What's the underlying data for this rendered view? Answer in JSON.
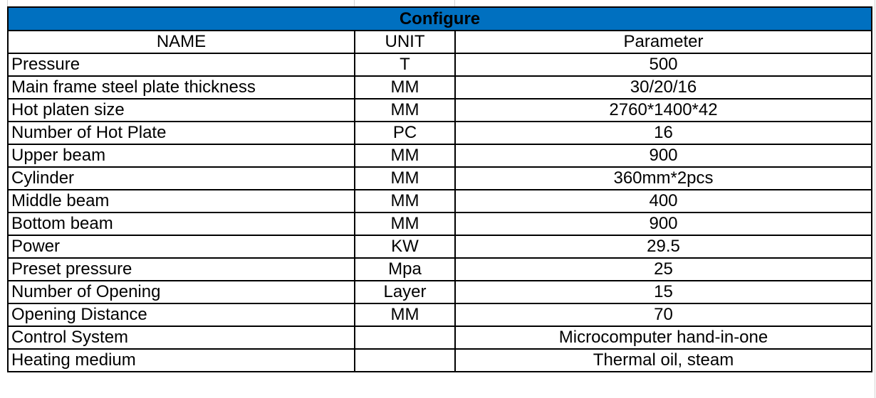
{
  "title": "Configure",
  "header_color": "#0070C0",
  "columns": [
    "NAME",
    "UNIT",
    "Parameter"
  ],
  "rows": [
    {
      "name": "Pressure",
      "unit": "T",
      "parameter": "500"
    },
    {
      "name": "Main frame steel plate thickness",
      "unit": "MM",
      "parameter": "30/20/16"
    },
    {
      "name": "Hot platen size",
      "unit": "MM",
      "parameter": "2760*1400*42"
    },
    {
      "name": "Number of Hot Plate",
      "unit": "PC",
      "parameter": "16"
    },
    {
      "name": "Upper beam",
      "unit": "MM",
      "parameter": "900"
    },
    {
      "name": "Cylinder",
      "unit": "MM",
      "parameter": "360mm*2pcs"
    },
    {
      "name": "Middle beam",
      "unit": "MM",
      "parameter": "400"
    },
    {
      "name": "Bottom beam",
      "unit": "MM",
      "parameter": "900"
    },
    {
      "name": "Power",
      "unit": "KW",
      "parameter": "29.5"
    },
    {
      "name": "Preset pressure",
      "unit": "Mpa",
      "parameter": "25"
    },
    {
      "name": "Number of Opening",
      "unit": "Layer",
      "parameter": "15"
    },
    {
      "name": "Opening Distance",
      "unit": "MM",
      "parameter": "70"
    },
    {
      "name": "Control System",
      "unit": "",
      "parameter": "Microcomputer hand-in-one"
    },
    {
      "name": "Heating medium",
      "unit": "",
      "parameter": "Thermal oil, steam"
    }
  ]
}
